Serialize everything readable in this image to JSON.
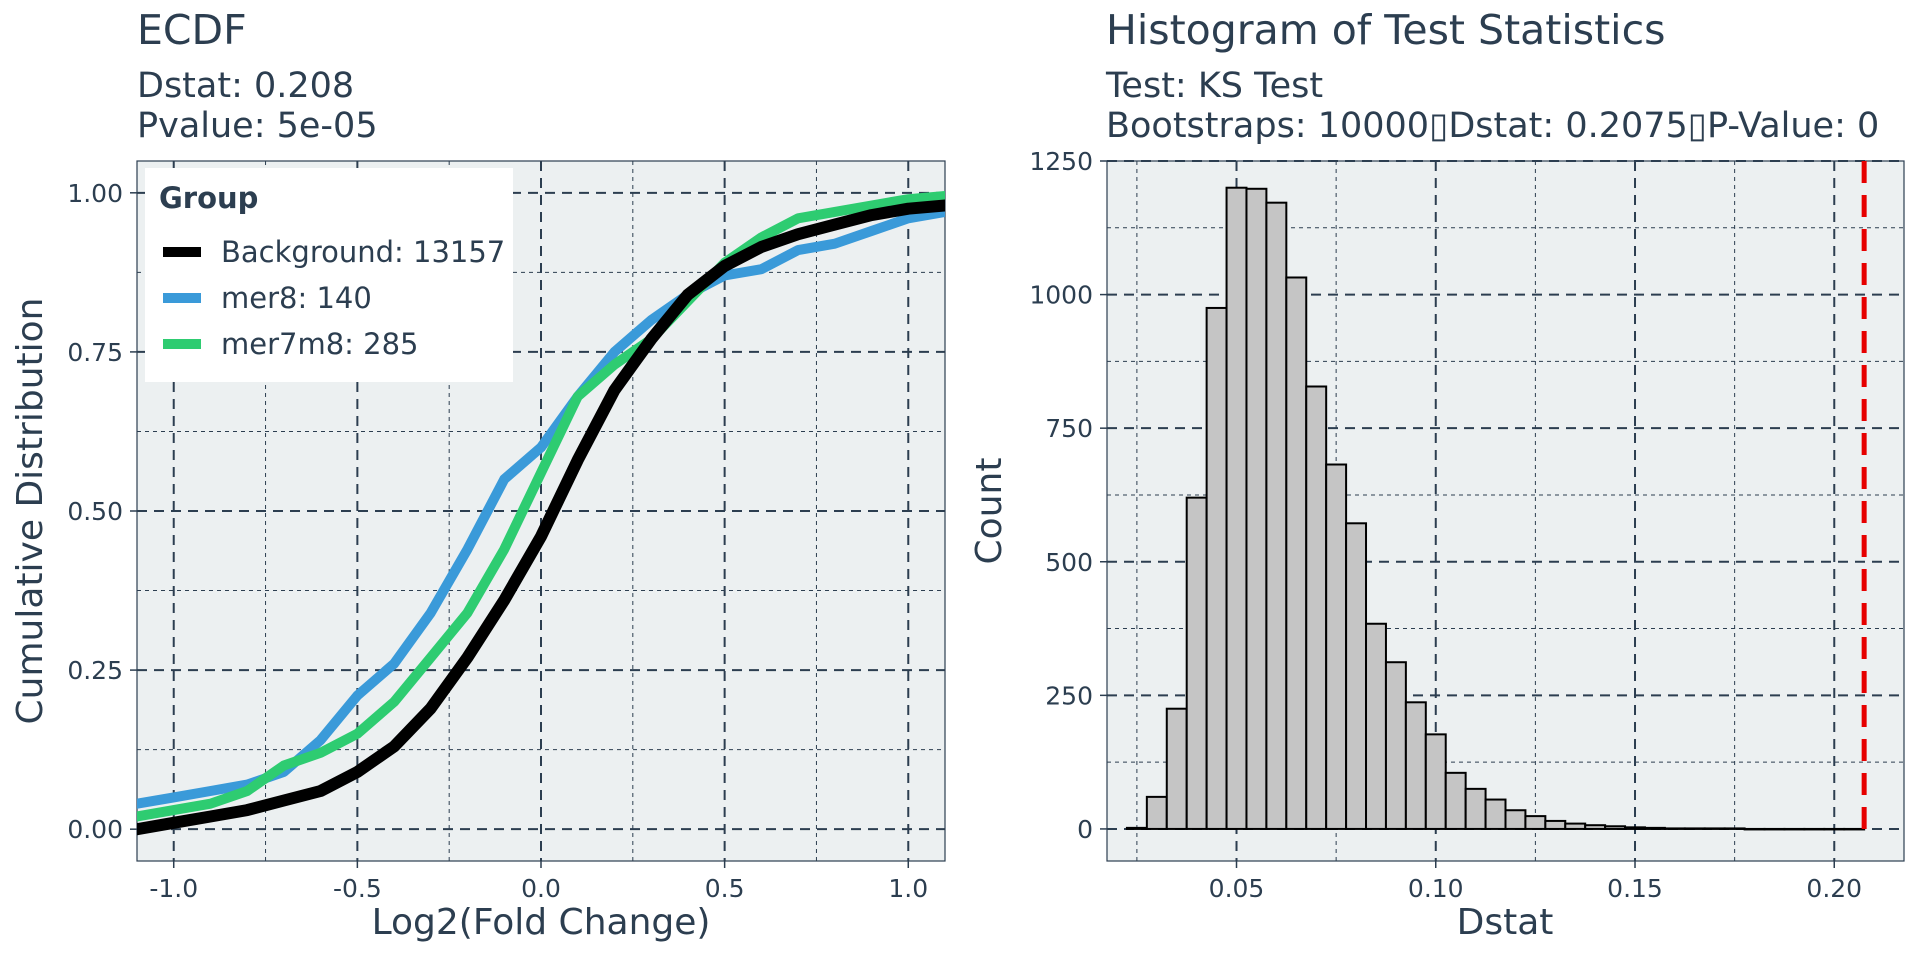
{
  "chart_data": [
    {
      "type": "line",
      "title": "ECDF",
      "subtitle_lines": [
        "Dstat: 0.208",
        "Pvalue: 5e-05"
      ],
      "xlabel": "Log2(Fold Change)",
      "ylabel": "Cumulative Distribution",
      "xlim": [
        -1.1,
        1.1
      ],
      "ylim": [
        -0.05,
        1.05
      ],
      "x_ticks": [
        -1.0,
        -0.5,
        0.0,
        0.5,
        1.0
      ],
      "x_tick_labels": [
        "-1.0",
        "-0.5",
        "0.0",
        "0.5",
        "1.0"
      ],
      "y_ticks": [
        0.0,
        0.25,
        0.5,
        0.75,
        1.0
      ],
      "y_tick_labels": [
        "0.00",
        "0.25",
        "0.50",
        "0.75",
        "1.00"
      ],
      "grid": true,
      "legend": {
        "title": "Group",
        "placement": "top-left",
        "entries": [
          "Background: 13157",
          "mer8: 140",
          "mer7m8: 285"
        ]
      },
      "series": [
        {
          "name": "Background: 13157",
          "color": "#000000",
          "x": [
            -1.1,
            -1.0,
            -0.9,
            -0.8,
            -0.7,
            -0.6,
            -0.5,
            -0.4,
            -0.3,
            -0.2,
            -0.1,
            0.0,
            0.1,
            0.2,
            0.3,
            0.4,
            0.5,
            0.6,
            0.7,
            0.8,
            0.9,
            1.0,
            1.1
          ],
          "y": [
            0.0,
            0.01,
            0.02,
            0.03,
            0.045,
            0.06,
            0.09,
            0.13,
            0.19,
            0.27,
            0.36,
            0.46,
            0.58,
            0.69,
            0.77,
            0.84,
            0.885,
            0.915,
            0.935,
            0.95,
            0.965,
            0.975,
            0.98
          ]
        },
        {
          "name": "mer8: 140",
          "color": "#3a9ad9",
          "x": [
            -1.1,
            -1.0,
            -0.9,
            -0.8,
            -0.7,
            -0.6,
            -0.5,
            -0.4,
            -0.3,
            -0.2,
            -0.1,
            0.0,
            0.1,
            0.2,
            0.3,
            0.4,
            0.5,
            0.6,
            0.7,
            0.8,
            0.9,
            1.0,
            1.1
          ],
          "y": [
            0.04,
            0.05,
            0.06,
            0.07,
            0.09,
            0.14,
            0.21,
            0.26,
            0.34,
            0.44,
            0.55,
            0.6,
            0.68,
            0.75,
            0.8,
            0.84,
            0.87,
            0.88,
            0.91,
            0.92,
            0.94,
            0.96,
            0.97
          ]
        },
        {
          "name": "mer7m8: 285",
          "color": "#2ecc71",
          "x": [
            -1.1,
            -1.0,
            -0.9,
            -0.8,
            -0.7,
            -0.6,
            -0.5,
            -0.4,
            -0.3,
            -0.2,
            -0.1,
            0.0,
            0.1,
            0.2,
            0.3,
            0.4,
            0.5,
            0.6,
            0.7,
            0.8,
            0.9,
            1.0,
            1.1
          ],
          "y": [
            0.02,
            0.03,
            0.04,
            0.06,
            0.1,
            0.12,
            0.15,
            0.2,
            0.27,
            0.34,
            0.44,
            0.56,
            0.68,
            0.73,
            0.77,
            0.83,
            0.89,
            0.93,
            0.96,
            0.97,
            0.98,
            0.99,
            0.995
          ]
        }
      ]
    },
    {
      "type": "bar",
      "title": "Histogram of Test Statistics",
      "subtitle_lines": [
        "Test: KS Test",
        "Bootstraps: 10000▯Dstat: 0.2075▯P-Value: 0"
      ],
      "xlabel": "Dstat",
      "ylabel": "Count",
      "xlim": [
        0.0,
        0.2
      ],
      "ylim": [
        -60,
        1250
      ],
      "x_ticks": [
        0.05,
        0.1,
        0.15,
        0.2
      ],
      "x_tick_labels": [
        "0.05",
        "0.10",
        "0.15",
        "0.20"
      ],
      "y_ticks": [
        0,
        250,
        500,
        750,
        1000,
        1250
      ],
      "y_tick_labels": [
        "0",
        "250",
        "500",
        "750",
        "1000",
        "1250"
      ],
      "grid": true,
      "bin_width": 0.005,
      "bin_centers": [
        0.025,
        0.03,
        0.035,
        0.04,
        0.045,
        0.05,
        0.055,
        0.06,
        0.065,
        0.07,
        0.075,
        0.08,
        0.085,
        0.09,
        0.095,
        0.1,
        0.105,
        0.11,
        0.115,
        0.12,
        0.125,
        0.13,
        0.135,
        0.14,
        0.145,
        0.15,
        0.155,
        0.16,
        0.165,
        0.17,
        0.175,
        0.18,
        0.185,
        0.19,
        0.195,
        0.2,
        0.205
      ],
      "values": [
        2,
        60,
        225,
        620,
        975,
        1200,
        1198,
        1172,
        1032,
        828,
        682,
        572,
        384,
        312,
        237,
        177,
        105,
        75,
        55,
        35,
        24,
        15,
        10,
        7,
        5,
        3,
        2,
        1,
        1,
        1,
        1,
        0,
        0,
        0,
        0,
        0,
        0
      ],
      "bar_fill": "#c5c5c5",
      "bar_stroke": "#000000",
      "reference_line": {
        "x": 0.2075,
        "color": "#e60000",
        "style": "dashed"
      }
    }
  ]
}
